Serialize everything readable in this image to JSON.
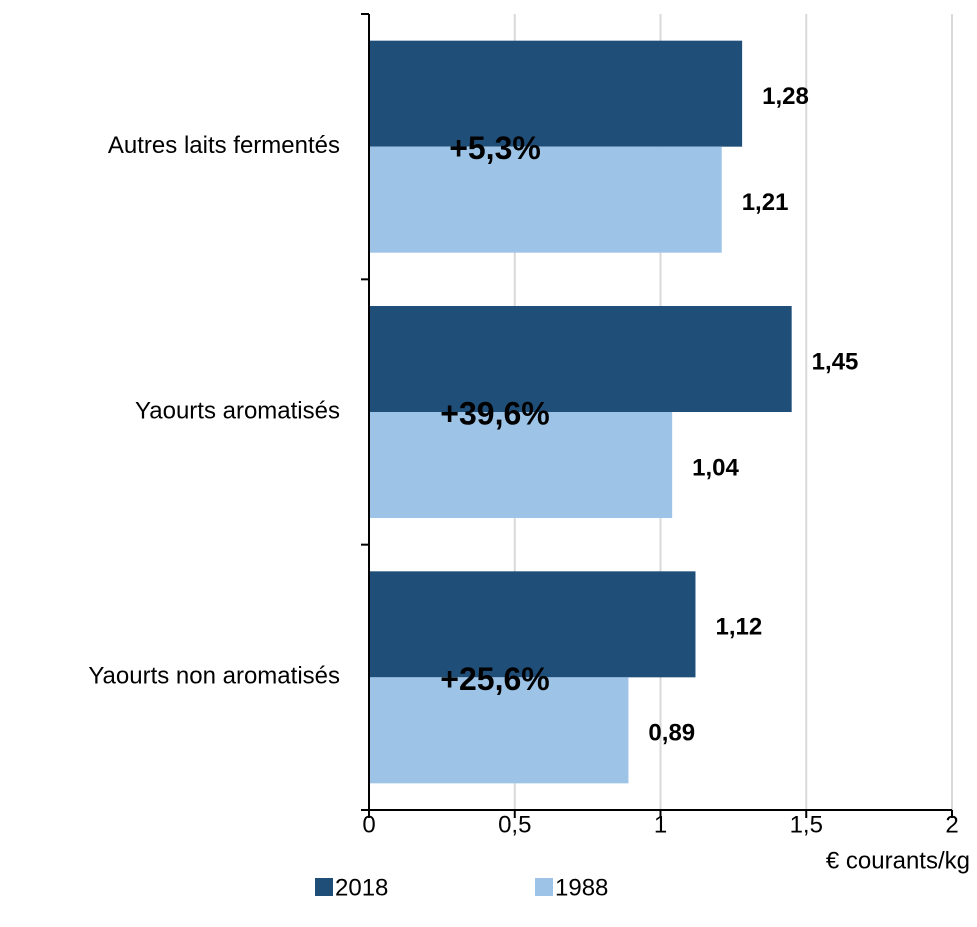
{
  "chart_data": {
    "type": "hbar",
    "categories": [
      "Autres laits fermentés",
      "Yaourts aromatisés",
      "Yaourts non aromatisés"
    ],
    "series": [
      {
        "name": "2018",
        "color": "#1f4e79",
        "values": [
          1.28,
          1.45,
          1.12
        ],
        "value_labels": [
          "1,28",
          "1,45",
          "1,12"
        ]
      },
      {
        "name": "1988",
        "color": "#9dc3e6",
        "values": [
          1.21,
          1.04,
          0.89
        ],
        "value_labels": [
          "1,21",
          "1,04",
          "0,89"
        ]
      }
    ],
    "annotations": [
      "+5,3%",
      "+39,6%",
      "+25,6%"
    ],
    "xlabel": "€ courants/kg",
    "xlim": [
      0,
      2
    ],
    "xticks": [
      0,
      {
        "value": 0.5,
        "label": "0,5"
      },
      1,
      {
        "value": 1.5,
        "label": "1,5"
      },
      2
    ],
    "grid": true
  }
}
